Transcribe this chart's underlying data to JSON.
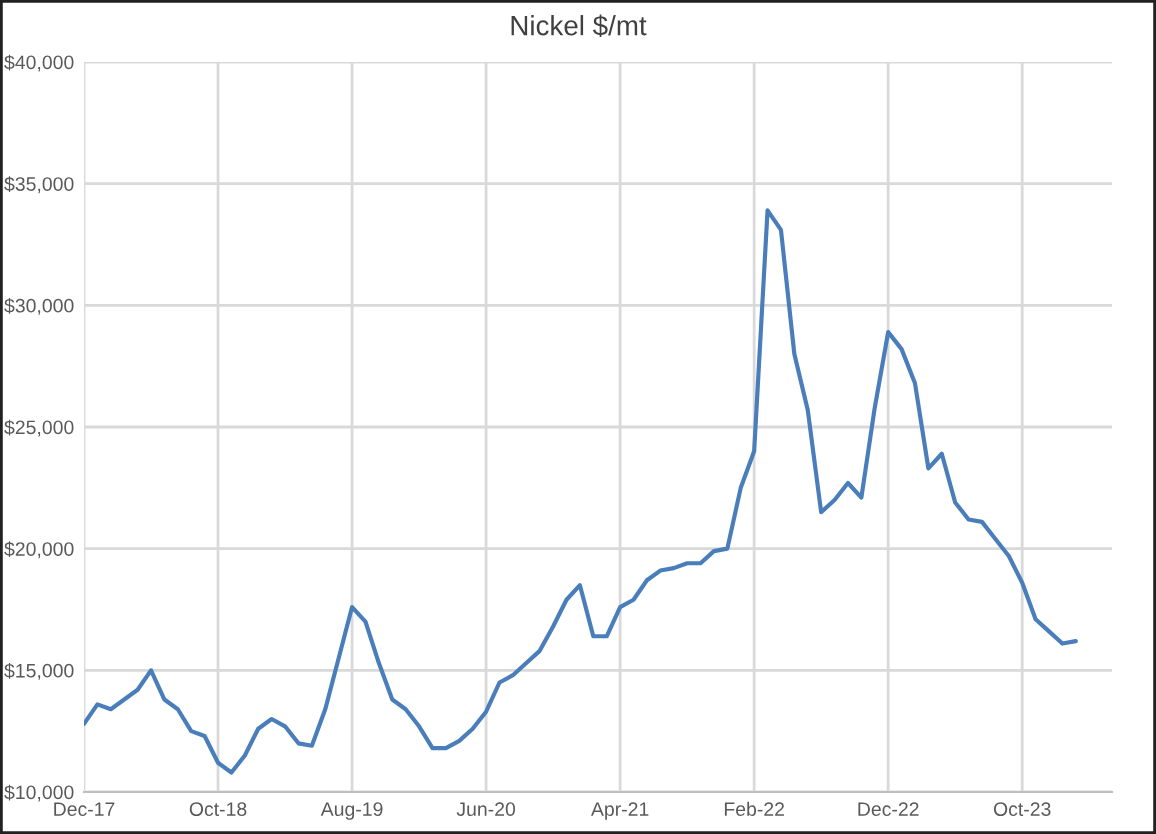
{
  "chart_data": {
    "type": "line",
    "title": "Nickel $/mt",
    "categories": [
      "Dec-17",
      null,
      null,
      null,
      null,
      null,
      null,
      null,
      null,
      null,
      "Oct-18",
      null,
      null,
      null,
      null,
      null,
      null,
      null,
      null,
      null,
      "Aug-19",
      null,
      null,
      null,
      null,
      null,
      null,
      null,
      null,
      null,
      "Jun-20",
      null,
      null,
      null,
      null,
      null,
      null,
      null,
      null,
      null,
      "Apr-21",
      null,
      null,
      null,
      null,
      null,
      null,
      null,
      null,
      null,
      "Feb-22",
      null,
      null,
      null,
      null,
      null,
      null,
      null,
      null,
      null,
      "Dec-22",
      null,
      null,
      null,
      null,
      null,
      null,
      null,
      null,
      null,
      "Oct-23",
      null,
      null,
      null,
      null
    ],
    "series": [
      {
        "color": "#4a7ebb",
        "values": [
          12800,
          13600,
          13400,
          13800,
          14200,
          15000,
          13800,
          13400,
          12500,
          12300,
          11200,
          10800,
          11500,
          12600,
          13000,
          12700,
          12000,
          11900,
          13400,
          15500,
          17600,
          17000,
          15300,
          13800,
          13400,
          12700,
          11800,
          11800,
          12100,
          12600,
          13300,
          14500,
          14800,
          15300,
          15800,
          16800,
          17900,
          18500,
          16400,
          16400,
          17600,
          17900,
          18700,
          19100,
          19200,
          19400,
          19400,
          19900,
          20000,
          22500,
          24000,
          33900,
          33100,
          28000,
          25700,
          21500,
          22000,
          22700,
          22100,
          25800,
          28900,
          28200,
          26800,
          23300,
          23900,
          21900,
          21200,
          21100,
          20400,
          19700,
          18600,
          17100,
          16600,
          16100,
          16200
        ]
      }
    ],
    "ylim": [
      10000,
      40000
    ],
    "yticks": [
      {
        "value": 10000,
        "label": "$10,000"
      },
      {
        "value": 15000,
        "label": "$15,000"
      },
      {
        "value": 20000,
        "label": "$20,000"
      },
      {
        "value": 25000,
        "label": "$25,000"
      },
      {
        "value": 30000,
        "label": "$30,000"
      },
      {
        "value": 35000,
        "label": "$35,000"
      },
      {
        "value": 40000,
        "label": "$40,000"
      }
    ],
    "grid": true,
    "legend": false,
    "marker": "none",
    "line_style": "solid"
  }
}
